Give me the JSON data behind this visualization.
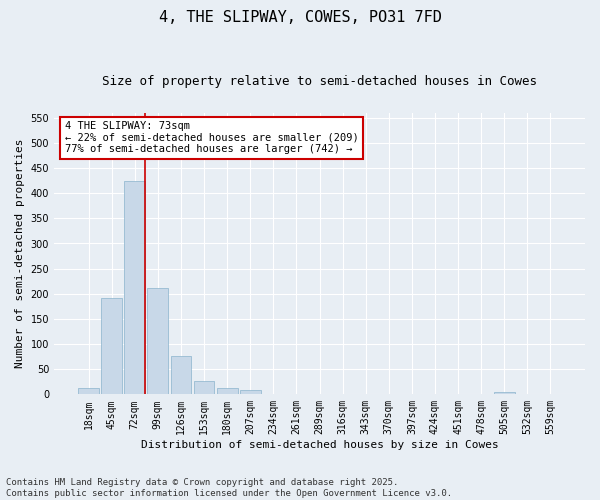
{
  "title": "4, THE SLIPWAY, COWES, PO31 7FD",
  "subtitle": "Size of property relative to semi-detached houses in Cowes",
  "xlabel": "Distribution of semi-detached houses by size in Cowes",
  "ylabel": "Number of semi-detached properties",
  "bar_color": "#c8d8e8",
  "bar_edge_color": "#8ab4cc",
  "background_color": "#e8eef4",
  "grid_color": "#ffffff",
  "categories": [
    "18sqm",
    "45sqm",
    "72sqm",
    "99sqm",
    "126sqm",
    "153sqm",
    "180sqm",
    "207sqm",
    "234sqm",
    "261sqm",
    "289sqm",
    "316sqm",
    "343sqm",
    "370sqm",
    "397sqm",
    "424sqm",
    "451sqm",
    "478sqm",
    "505sqm",
    "532sqm",
    "559sqm"
  ],
  "values": [
    12,
    192,
    425,
    211,
    77,
    26,
    12,
    8,
    0,
    0,
    0,
    0,
    0,
    0,
    0,
    0,
    0,
    0,
    4,
    0,
    0
  ],
  "ylim": [
    0,
    560
  ],
  "yticks": [
    0,
    50,
    100,
    150,
    200,
    250,
    300,
    350,
    400,
    450,
    500,
    550
  ],
  "red_line_index": 2,
  "annotation_title": "4 THE SLIPWAY: 73sqm",
  "annotation_line1": "← 22% of semi-detached houses are smaller (209)",
  "annotation_line2": "77% of semi-detached houses are larger (742) →",
  "annotation_box_color": "#cc0000",
  "footnote1": "Contains HM Land Registry data © Crown copyright and database right 2025.",
  "footnote2": "Contains public sector information licensed under the Open Government Licence v3.0.",
  "title_fontsize": 11,
  "subtitle_fontsize": 9,
  "xlabel_fontsize": 8,
  "ylabel_fontsize": 8,
  "tick_fontsize": 7,
  "annotation_fontsize": 7.5,
  "footnote_fontsize": 6.5
}
